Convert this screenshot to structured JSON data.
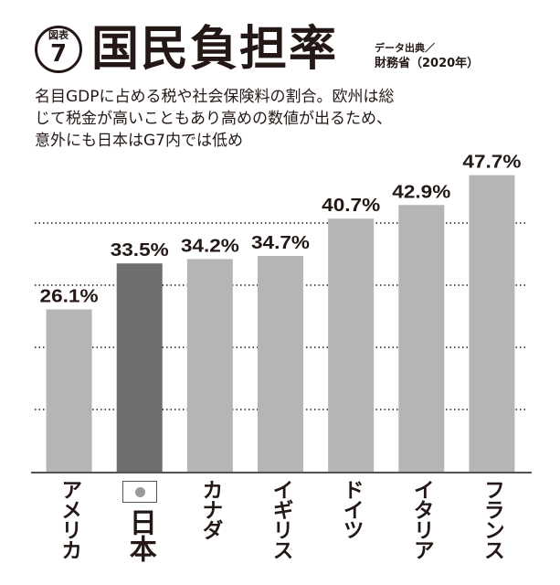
{
  "header": {
    "badge_label": "図表",
    "badge_number": "7",
    "title": "国民負担率",
    "source_line1": "データ出典／",
    "source_line2": "財務省（2020年）",
    "description": "名目GDPに占める税や社会保険料の割合。欧州は総じて税金が高いこともあり高めの数値が出るため、意外にも日本はG7内では低め"
  },
  "chart_data": {
    "type": "bar",
    "categories": [
      "アメリカ",
      "日本",
      "カナダ",
      "イギリス",
      "ドイツ",
      "イタリア",
      "フランス"
    ],
    "values": [
      26.1,
      33.5,
      34.2,
      34.7,
      40.7,
      42.9,
      47.7
    ],
    "data_labels": [
      "26.1%",
      "33.5%",
      "34.2%",
      "34.7%",
      "40.7%",
      "42.9%",
      "47.7%"
    ],
    "ylim": [
      0,
      49
    ],
    "gridlines": [
      10,
      20,
      30,
      40
    ],
    "grid": "dotted horizontal",
    "highlight_category": "日本",
    "colors": {
      "bar": "#b5b5b5",
      "highlight": "#6e6e6e",
      "text": "#231815"
    }
  }
}
